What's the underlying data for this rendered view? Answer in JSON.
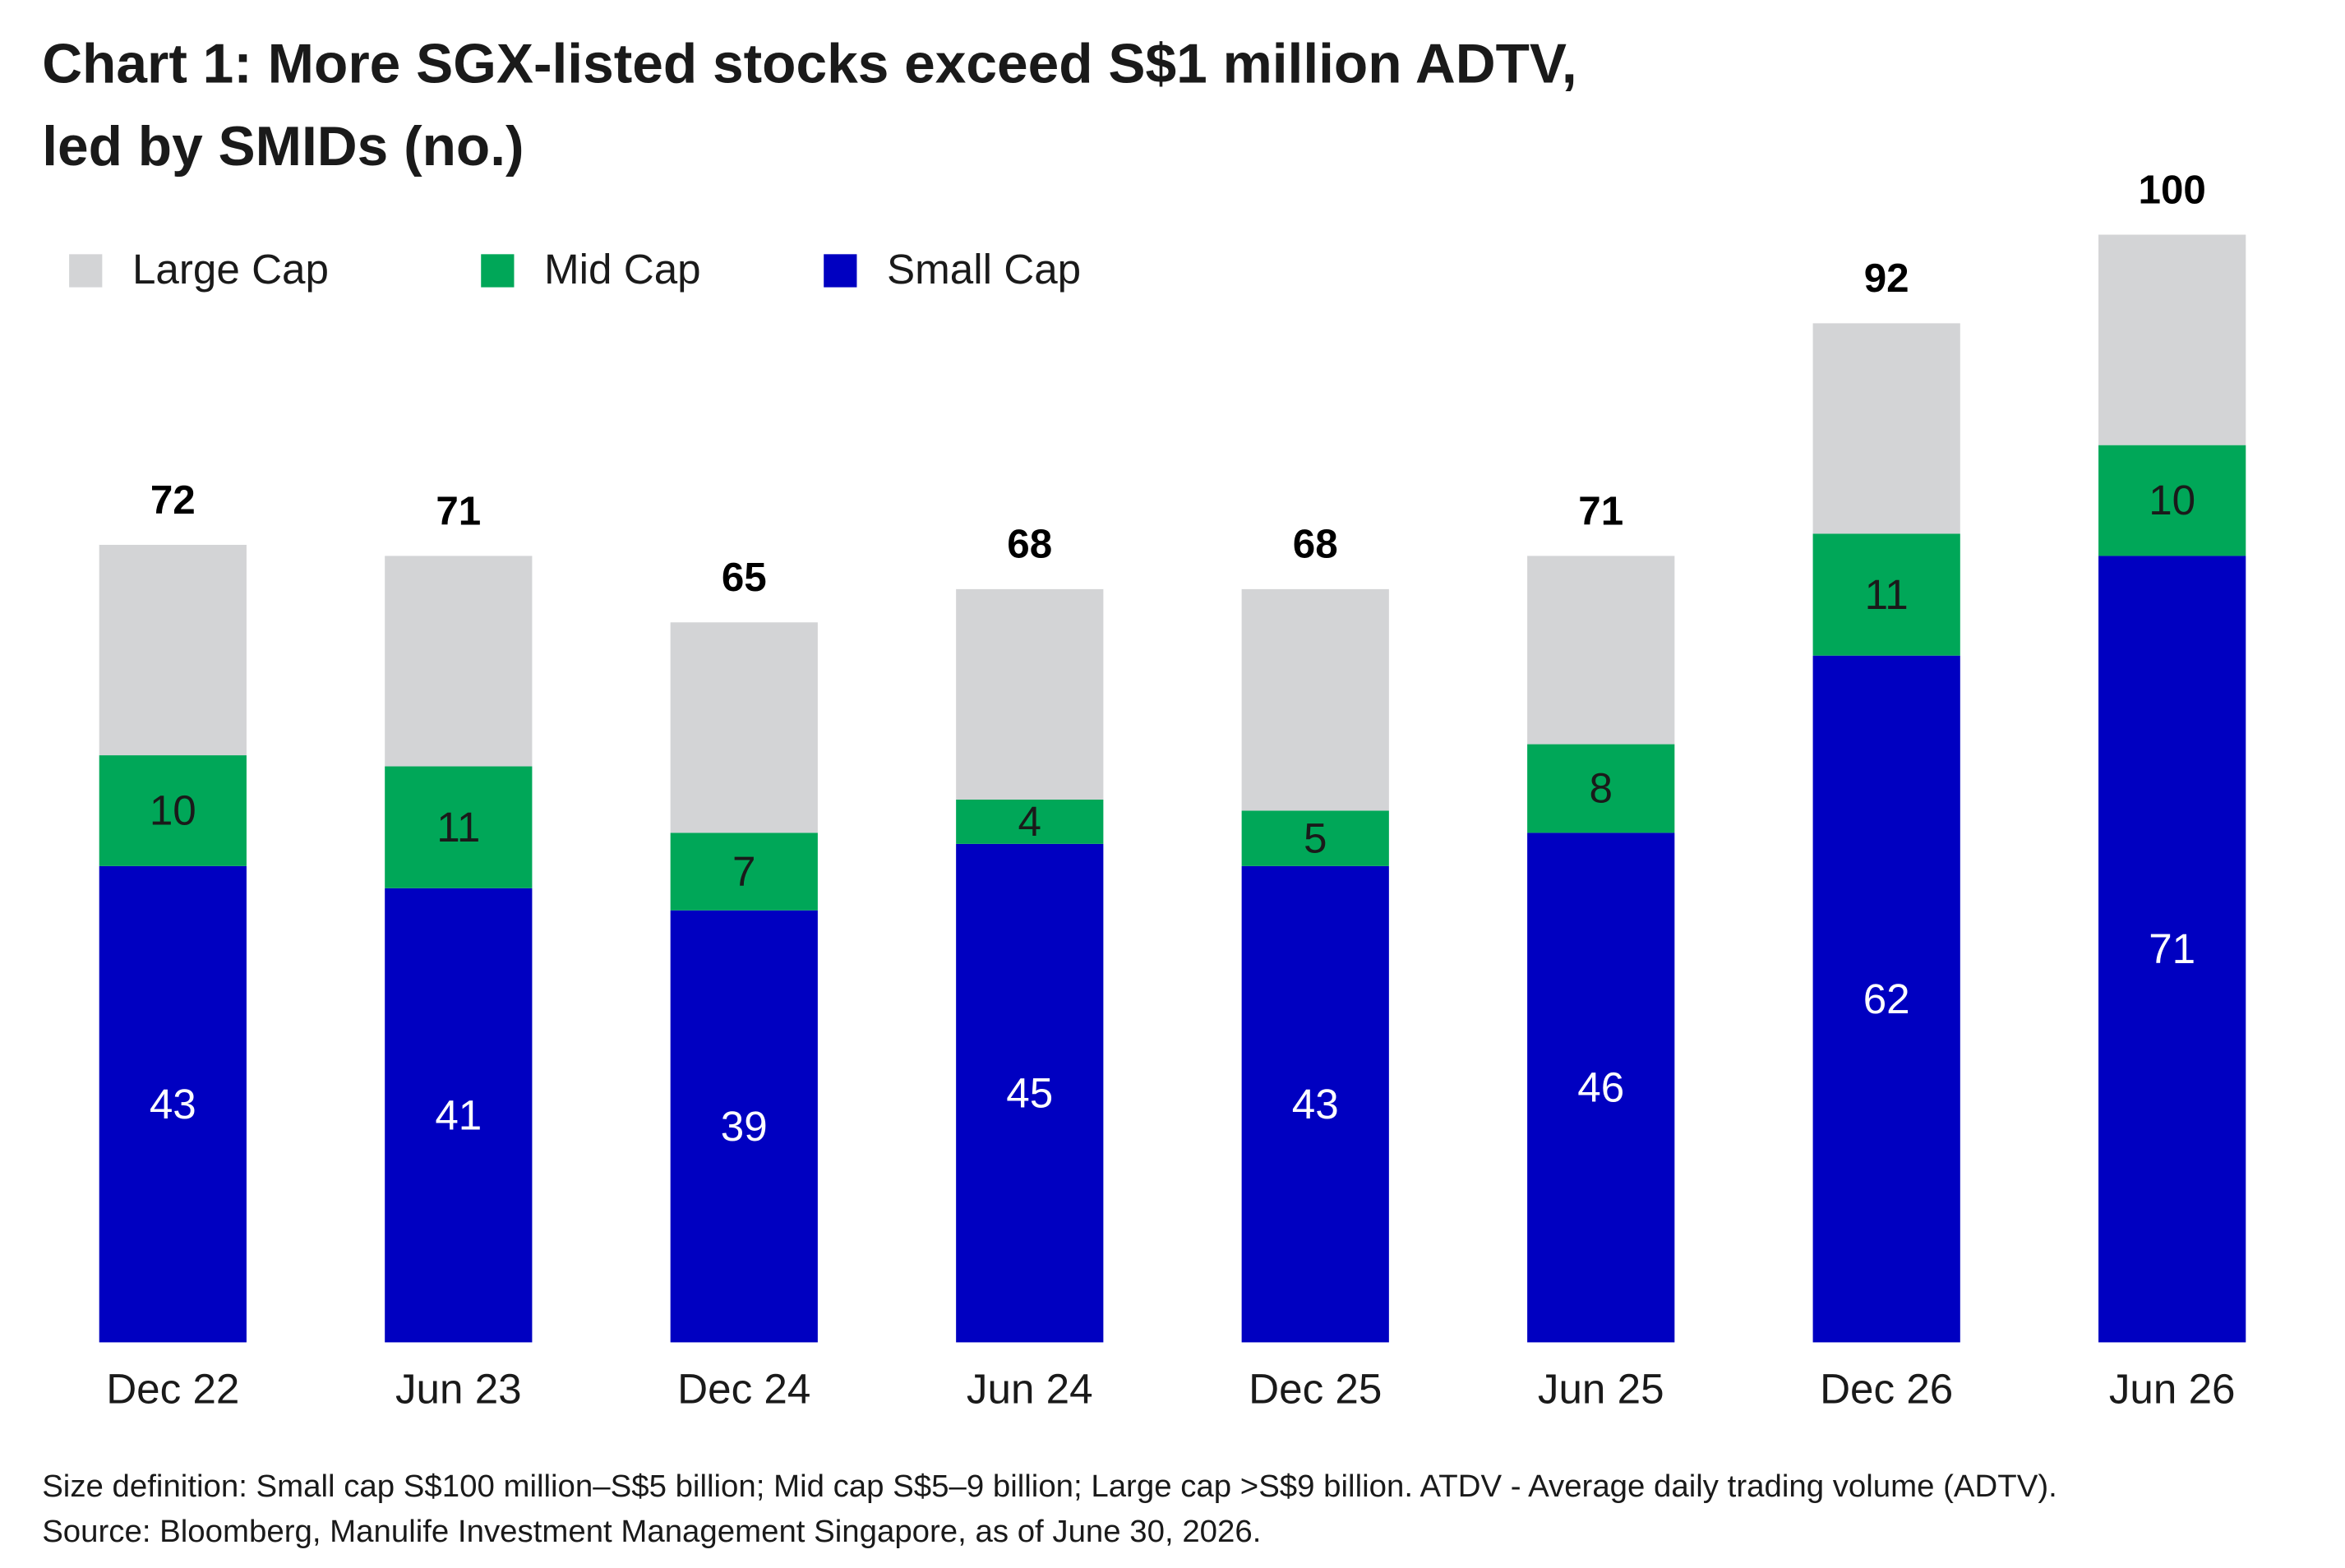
{
  "chart_data": {
    "type": "stacked_bar",
    "title": [
      "Chart 1: More SGX-listed stocks exceed S$1 million ADTV,",
      "led by SMIDs (no.)"
    ],
    "categories": [
      "Dec 22",
      "Jun 23",
      "Dec 24",
      "Jun 24",
      "Dec 25",
      "Jun 25",
      "Dec 26",
      "Jun 26"
    ],
    "series": [
      {
        "name": "Large Cap",
        "color": "#d3d4d6",
        "values": [
          19,
          19,
          19,
          19,
          20,
          17,
          19,
          19
        ],
        "show_values": false,
        "label_color": "#000000"
      },
      {
        "name": "Mid Cap",
        "color": "#00a758",
        "values": [
          10,
          11,
          7,
          4,
          5,
          8,
          11,
          10
        ],
        "show_values": true,
        "label_color": "#1a1a1a"
      },
      {
        "name": "Small Cap",
        "color": "#0000c1",
        "values": [
          43,
          41,
          39,
          45,
          43,
          46,
          62,
          71
        ],
        "show_values": true,
        "label_color": "#ffffff"
      }
    ],
    "totals": [
      72,
      71,
      65,
      68,
      68,
      71,
      92,
      100
    ],
    "notes": [
      "Size definition: Small cap S$100 million–S$5 billion; Mid cap S$5–9 billion; Large cap >S$9 billion. ATDV - Average daily trading volume (ADTV).",
      "Source: Bloomberg, Manulife Investment Management Singapore, as of June 30, 2026."
    ]
  }
}
